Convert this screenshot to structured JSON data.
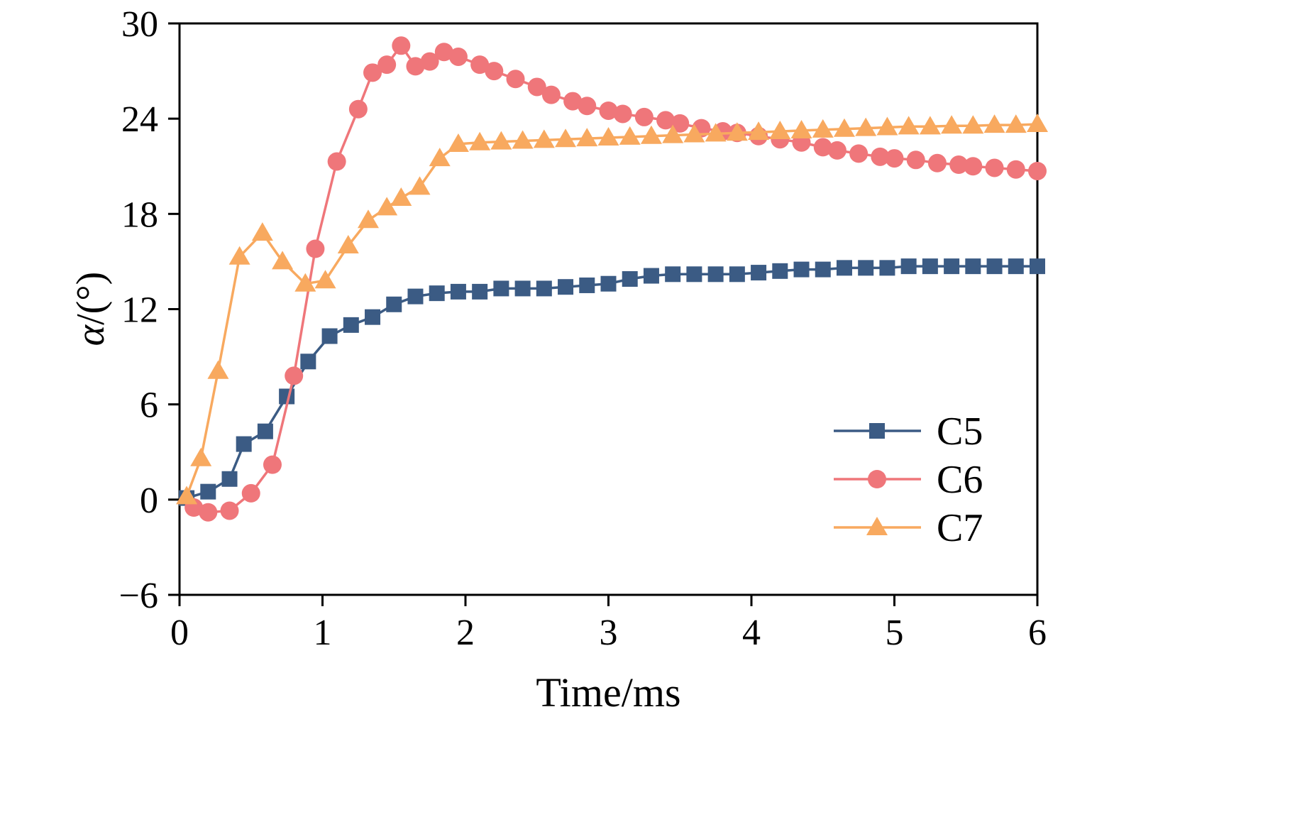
{
  "figure": {
    "background": "#ffffff",
    "axis_color": "#000000"
  },
  "axis": {
    "x_label": "Time/ms",
    "y_label_symbol": "α",
    "y_label_rest": "/(°)"
  },
  "chart_data": {
    "type": "line",
    "title": "",
    "xlabel": "Time/ms",
    "ylabel": "α/(°)",
    "xlim": [
      0,
      6
    ],
    "ylim": [
      -6,
      30
    ],
    "xticks": [
      0,
      1,
      2,
      3,
      4,
      5,
      6
    ],
    "xtick_labels": [
      "0",
      "1",
      "2",
      "3",
      "4",
      "5",
      "6"
    ],
    "yticks": [
      -6,
      0,
      6,
      12,
      18,
      24,
      30
    ],
    "ytick_labels": [
      "−6",
      "0",
      "6",
      "12",
      "18",
      "24",
      "30"
    ],
    "grid": false,
    "legend_position": "lower right",
    "legend": [
      "C5",
      "C6",
      "C7"
    ],
    "series": [
      {
        "name": "C5",
        "color": "#3b5b84",
        "marker": "square",
        "points": [
          [
            0.05,
            0.1
          ],
          [
            0.2,
            0.5
          ],
          [
            0.35,
            1.3
          ],
          [
            0.45,
            3.5
          ],
          [
            0.6,
            4.3
          ],
          [
            0.75,
            6.5
          ],
          [
            0.9,
            8.7
          ],
          [
            1.05,
            10.3
          ],
          [
            1.2,
            11.0
          ],
          [
            1.35,
            11.5
          ],
          [
            1.5,
            12.3
          ],
          [
            1.65,
            12.8
          ],
          [
            1.8,
            13.0
          ],
          [
            1.95,
            13.1
          ],
          [
            2.1,
            13.1
          ],
          [
            2.25,
            13.3
          ],
          [
            2.4,
            13.3
          ],
          [
            2.55,
            13.3
          ],
          [
            2.7,
            13.4
          ],
          [
            2.85,
            13.5
          ],
          [
            3.0,
            13.6
          ],
          [
            3.15,
            13.9
          ],
          [
            3.3,
            14.1
          ],
          [
            3.45,
            14.2
          ],
          [
            3.6,
            14.2
          ],
          [
            3.75,
            14.2
          ],
          [
            3.9,
            14.2
          ],
          [
            4.05,
            14.3
          ],
          [
            4.2,
            14.4
          ],
          [
            4.35,
            14.5
          ],
          [
            4.5,
            14.5
          ],
          [
            4.65,
            14.6
          ],
          [
            4.8,
            14.6
          ],
          [
            4.95,
            14.6
          ],
          [
            5.1,
            14.7
          ],
          [
            5.25,
            14.7
          ],
          [
            5.4,
            14.7
          ],
          [
            5.55,
            14.7
          ],
          [
            5.7,
            14.7
          ],
          [
            5.85,
            14.7
          ],
          [
            6.0,
            14.7
          ]
        ]
      },
      {
        "name": "C6",
        "color": "#ef767a",
        "marker": "circle",
        "points": [
          [
            0.1,
            -0.5
          ],
          [
            0.2,
            -0.8
          ],
          [
            0.35,
            -0.7
          ],
          [
            0.5,
            0.4
          ],
          [
            0.65,
            2.2
          ],
          [
            0.8,
            7.8
          ],
          [
            0.95,
            15.8
          ],
          [
            1.1,
            21.3
          ],
          [
            1.25,
            24.6
          ],
          [
            1.35,
            26.9
          ],
          [
            1.45,
            27.4
          ],
          [
            1.55,
            28.6
          ],
          [
            1.65,
            27.3
          ],
          [
            1.75,
            27.6
          ],
          [
            1.85,
            28.2
          ],
          [
            1.95,
            27.9
          ],
          [
            2.1,
            27.4
          ],
          [
            2.2,
            27.0
          ],
          [
            2.35,
            26.5
          ],
          [
            2.5,
            26.0
          ],
          [
            2.6,
            25.5
          ],
          [
            2.75,
            25.1
          ],
          [
            2.85,
            24.8
          ],
          [
            3.0,
            24.5
          ],
          [
            3.1,
            24.3
          ],
          [
            3.25,
            24.1
          ],
          [
            3.4,
            23.9
          ],
          [
            3.5,
            23.7
          ],
          [
            3.65,
            23.4
          ],
          [
            3.8,
            23.2
          ],
          [
            3.9,
            23.1
          ],
          [
            4.05,
            22.9
          ],
          [
            4.2,
            22.7
          ],
          [
            4.35,
            22.5
          ],
          [
            4.5,
            22.2
          ],
          [
            4.6,
            22.0
          ],
          [
            4.75,
            21.8
          ],
          [
            4.9,
            21.6
          ],
          [
            5.0,
            21.5
          ],
          [
            5.15,
            21.4
          ],
          [
            5.3,
            21.2
          ],
          [
            5.45,
            21.1
          ],
          [
            5.55,
            21.0
          ],
          [
            5.7,
            20.9
          ],
          [
            5.85,
            20.8
          ],
          [
            6.0,
            20.7
          ]
        ]
      },
      {
        "name": "C7",
        "color": "#f8a95f",
        "marker": "triangle",
        "points": [
          [
            0.05,
            0.2
          ],
          [
            0.15,
            2.6
          ],
          [
            0.27,
            8.1
          ],
          [
            0.42,
            15.3
          ],
          [
            0.58,
            16.8
          ],
          [
            0.72,
            15.0
          ],
          [
            0.88,
            13.6
          ],
          [
            1.02,
            13.8
          ],
          [
            1.18,
            16.0
          ],
          [
            1.32,
            17.6
          ],
          [
            1.45,
            18.4
          ],
          [
            1.55,
            19.0
          ],
          [
            1.68,
            19.7
          ],
          [
            1.82,
            21.5
          ],
          [
            1.95,
            22.4
          ],
          [
            2.1,
            22.5
          ],
          [
            2.25,
            22.55
          ],
          [
            2.4,
            22.6
          ],
          [
            2.55,
            22.65
          ],
          [
            2.7,
            22.7
          ],
          [
            2.85,
            22.75
          ],
          [
            3.0,
            22.8
          ],
          [
            3.15,
            22.85
          ],
          [
            3.3,
            22.9
          ],
          [
            3.45,
            22.95
          ],
          [
            3.6,
            23.0
          ],
          [
            3.75,
            23.05
          ],
          [
            3.9,
            23.1
          ],
          [
            4.05,
            23.15
          ],
          [
            4.2,
            23.2
          ],
          [
            4.35,
            23.25
          ],
          [
            4.5,
            23.3
          ],
          [
            4.65,
            23.35
          ],
          [
            4.8,
            23.4
          ],
          [
            4.95,
            23.45
          ],
          [
            5.1,
            23.5
          ],
          [
            5.25,
            23.5
          ],
          [
            5.4,
            23.55
          ],
          [
            5.55,
            23.55
          ],
          [
            5.7,
            23.6
          ],
          [
            5.85,
            23.6
          ],
          [
            6.0,
            23.65
          ]
        ]
      }
    ]
  }
}
